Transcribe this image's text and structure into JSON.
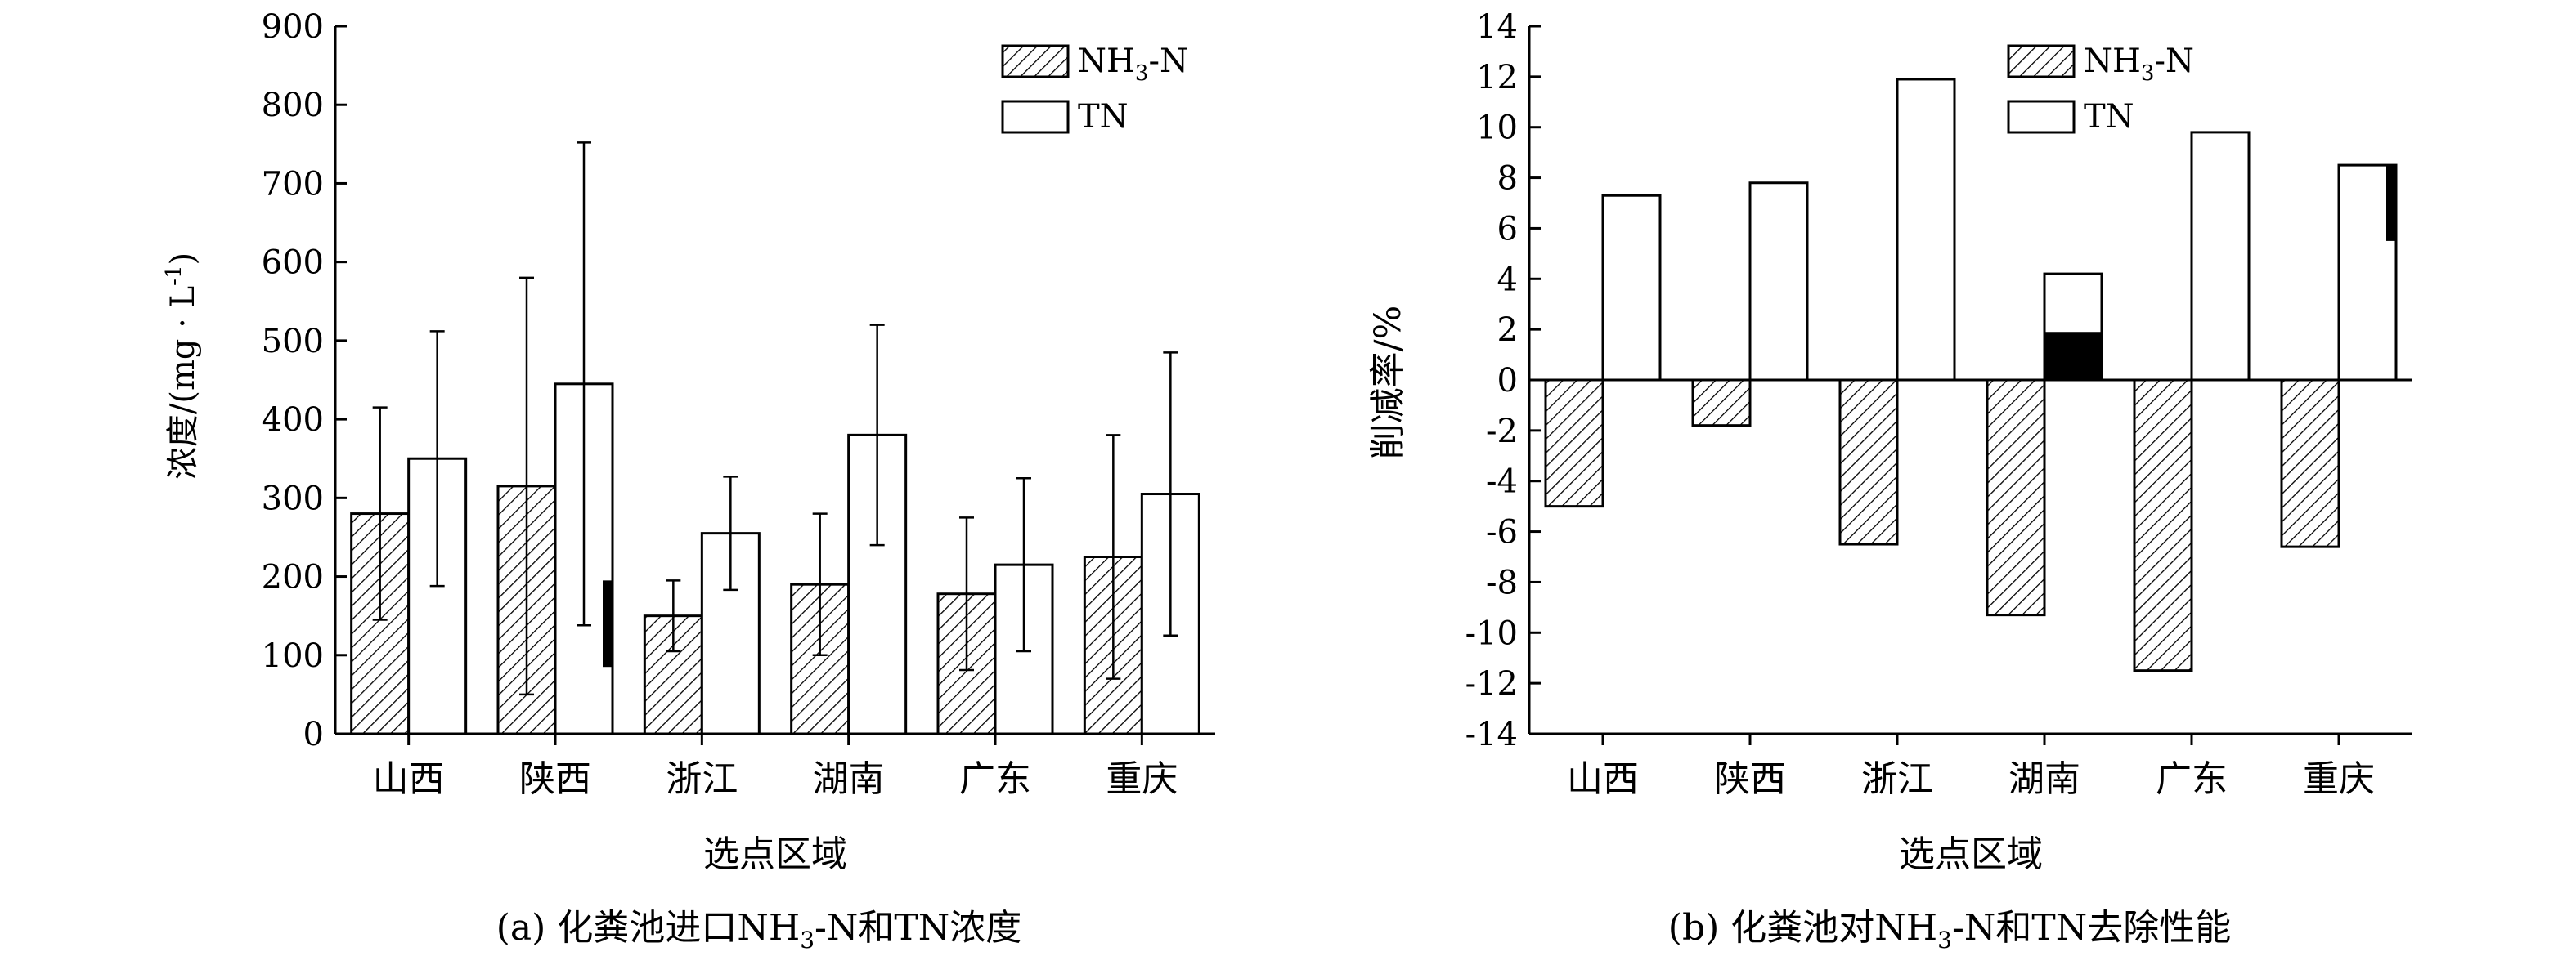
{
  "chart_data": [
    {
      "type": "bar",
      "categories": [
        "山西",
        "陕西",
        "浙江",
        "湖南",
        "广东",
        "重庆"
      ],
      "series": [
        {
          "name": "NH3-N",
          "values": [
            280,
            315,
            150,
            190,
            178,
            225
          ],
          "errors": [
            135,
            265,
            45,
            90,
            97,
            155
          ]
        },
        {
          "name": "TN",
          "values": [
            350,
            445,
            255,
            380,
            215,
            305
          ],
          "errors": [
            162,
            307,
            72,
            140,
            110,
            180
          ]
        }
      ],
      "legend": [
        "NH",
        "3",
        "-N",
        "TN"
      ],
      "xlabel": "选点区域",
      "ylabel": "浓度/(mg · L",
      "ylabel_sup": "-1",
      "ylabel_end": ")",
      "ylim": [
        0,
        900
      ],
      "yticks": [
        0,
        100,
        200,
        300,
        400,
        500,
        600,
        700,
        800,
        900
      ],
      "caption": "(a) 化粪池进口NH",
      "caption_sub": "3",
      "caption_end": "-N和TN浓度",
      "annotation_marker": {
        "category": "陕西",
        "from": 85,
        "to": 195
      },
      "legend_position": "top-right"
    },
    {
      "type": "bar",
      "categories": [
        "山西",
        "陕西",
        "浙江",
        "湖南",
        "广东",
        "重庆"
      ],
      "series": [
        {
          "name": "NH3-N",
          "values": [
            -5.0,
            -1.8,
            -6.5,
            -9.3,
            -11.5,
            -6.6
          ]
        },
        {
          "name": "TN",
          "values": [
            7.3,
            7.8,
            11.9,
            4.2,
            9.8,
            8.5
          ]
        }
      ],
      "legend": [
        "NH",
        "3",
        "-N",
        "TN"
      ],
      "xlabel": "选点区域",
      "ylabel": "削减率/%",
      "ylim": [
        -14,
        14
      ],
      "yticks": [
        -14,
        -12,
        -10,
        -8,
        -6,
        -4,
        -2,
        0,
        2,
        4,
        6,
        8,
        10,
        12,
        14
      ],
      "caption": "(b) 化粪池对NH",
      "caption_sub": "3",
      "caption_end": "-N和TN去除性能",
      "annotation_markers": [
        {
          "category": "湖南",
          "from": 0,
          "to": 1.9
        },
        {
          "category": "重庆",
          "from": 5.5,
          "to": 8.5
        }
      ],
      "legend_position": "top-right"
    }
  ]
}
